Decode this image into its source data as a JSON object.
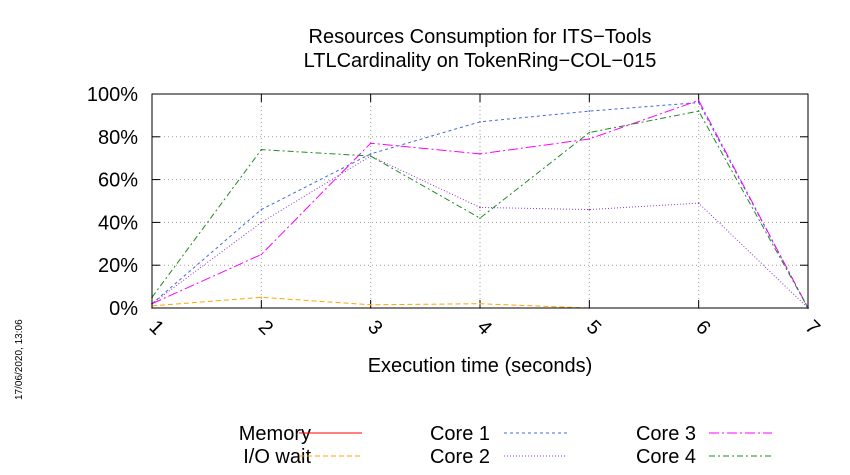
{
  "chart_data": {
    "type": "line",
    "title": [
      "Resources Consumption for ITS−Tools",
      "LTLCardinality on TokenRing−COL−015"
    ],
    "xlabel": "Execution time (seconds)",
    "ylabel": "",
    "x": [
      1,
      2,
      3,
      4,
      5,
      6,
      7
    ],
    "x_tick_labels": [
      "1",
      "2",
      "3",
      "4",
      "5",
      "6",
      "7"
    ],
    "xlim": [
      1,
      7
    ],
    "ylim": [
      0,
      100
    ],
    "y_ticks": [
      0,
      20,
      40,
      60,
      80,
      100
    ],
    "y_tick_labels": [
      "0%",
      "20%",
      "40%",
      "60%",
      "80%",
      "100%"
    ],
    "grid": true,
    "legend_position": "bottom",
    "series": [
      {
        "name": "Memory",
        "color": "#ff0000",
        "dash": "",
        "values": [
          0,
          0,
          0,
          0,
          0,
          0,
          0
        ]
      },
      {
        "name": "I/O wait",
        "color": "#ffa500",
        "dash": "5 3",
        "values": [
          1,
          5,
          1.5,
          2,
          0,
          0,
          0
        ]
      },
      {
        "name": "Core 1",
        "color": "#4169e1",
        "dash": "3 3",
        "values": [
          2,
          46,
          72,
          87,
          92,
          96,
          0
        ]
      },
      {
        "name": "Core 2",
        "color": "#9932cc",
        "dash": "1 2",
        "values": [
          2,
          40,
          71,
          47,
          46,
          49,
          0
        ]
      },
      {
        "name": "Core 3",
        "color": "#ff00ff",
        "dash": "10 3 2 3",
        "values": [
          2,
          25,
          77,
          72,
          79,
          97,
          0
        ]
      },
      {
        "name": "Core 4",
        "color": "#228b22",
        "dash": "6 3 2 3",
        "values": [
          5,
          74,
          71,
          42,
          82,
          92,
          0
        ]
      }
    ]
  },
  "timestamp": "17/06/2020, 13:06"
}
